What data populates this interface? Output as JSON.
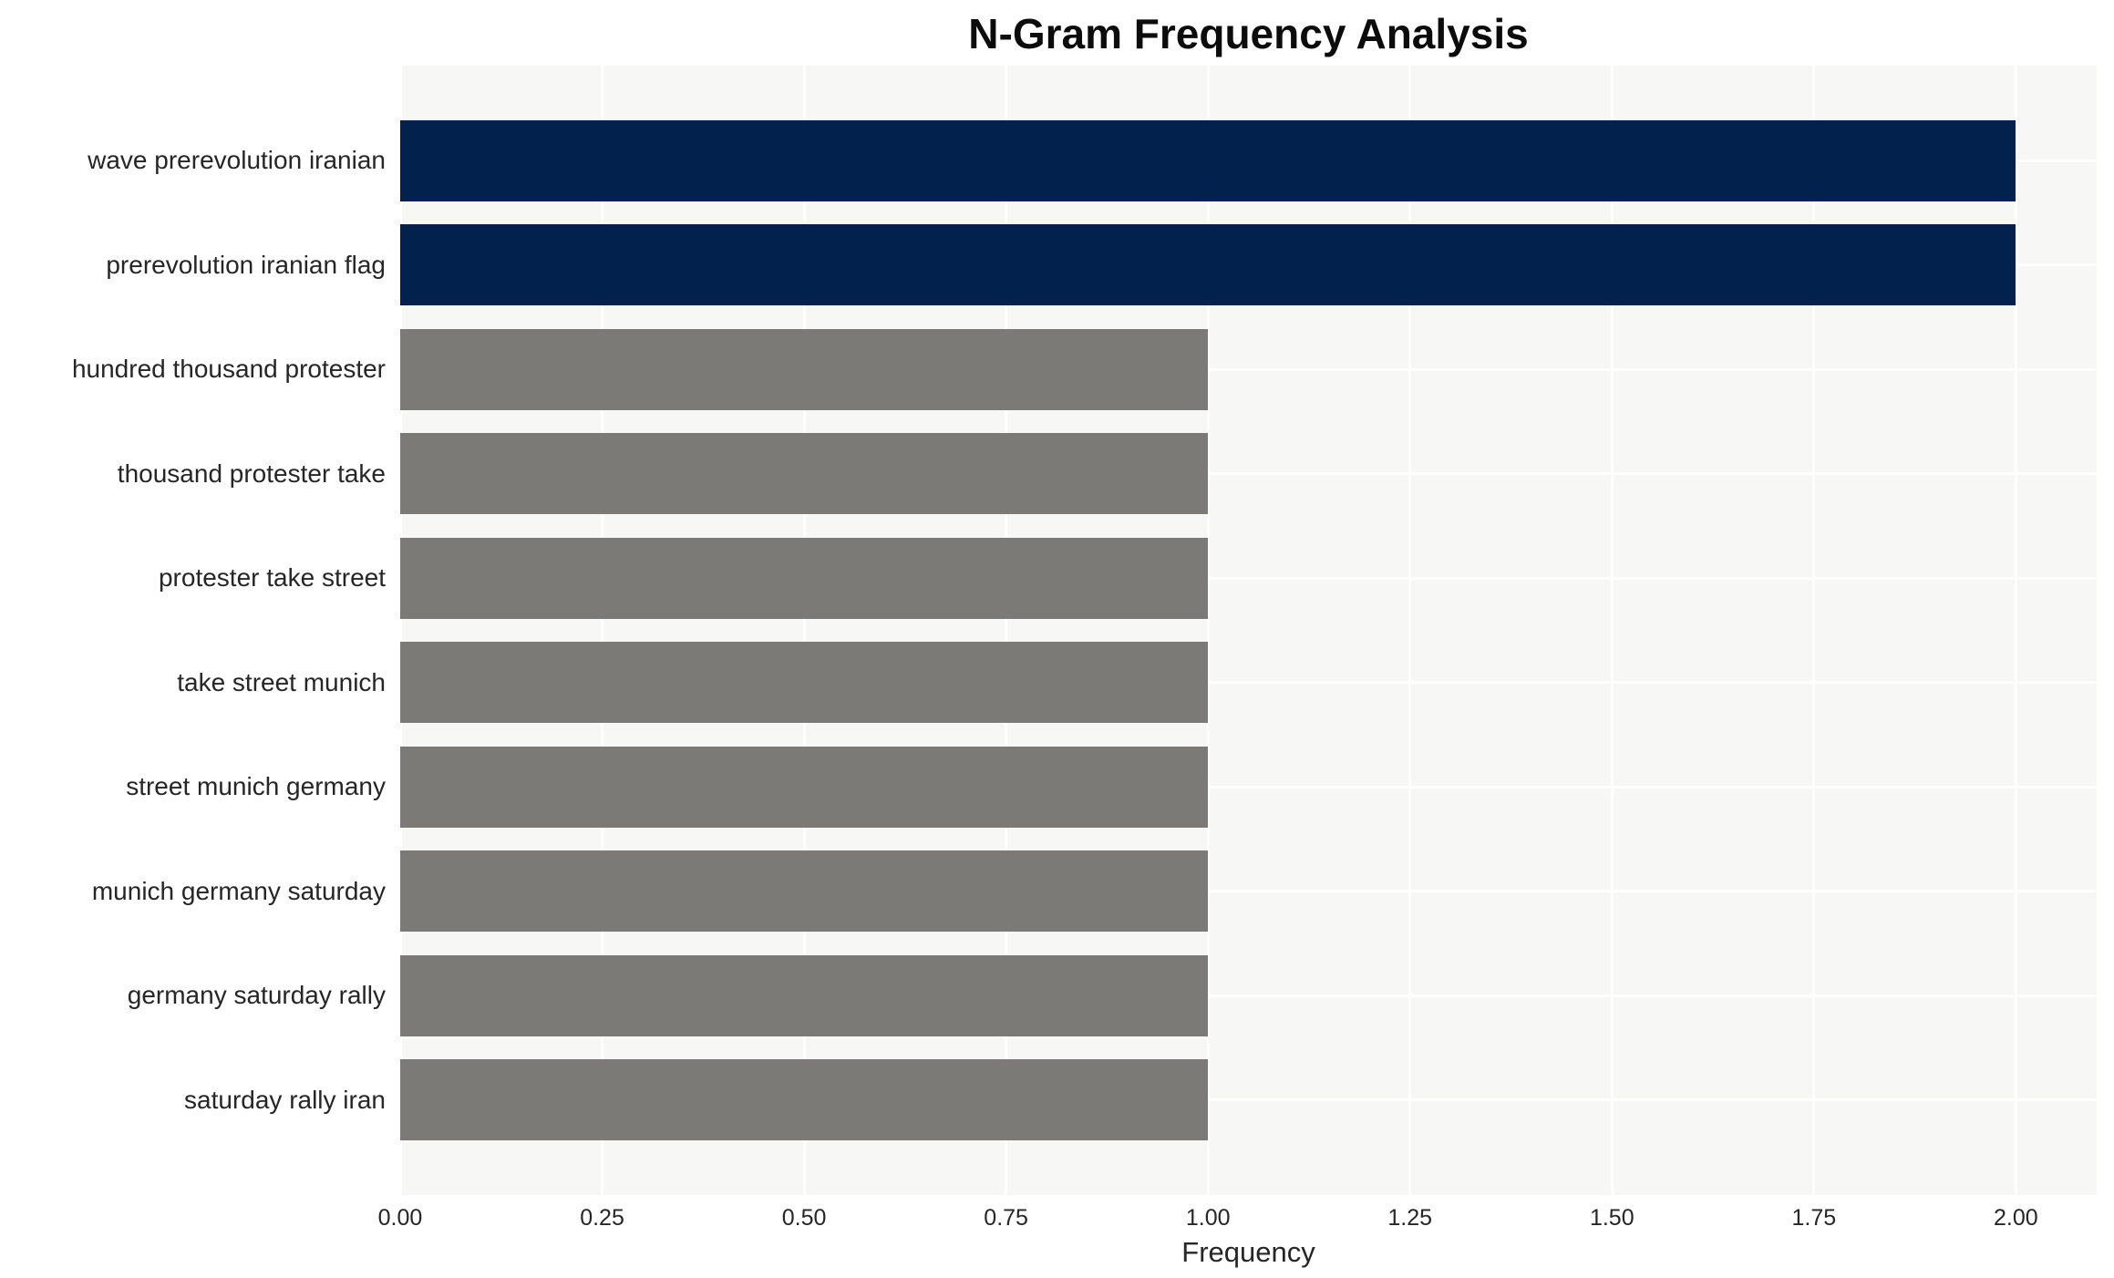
{
  "chart_title": "N-Gram Frequency Analysis",
  "chart_data": {
    "type": "bar",
    "orientation": "horizontal",
    "title": "N-Gram Frequency Analysis",
    "xlabel": "Frequency",
    "ylabel": "",
    "categories": [
      "wave prerevolution iranian",
      "prerevolution iranian flag",
      "hundred thousand protester",
      "thousand protester take",
      "protester take street",
      "take street munich",
      "street munich germany",
      "munich germany saturday",
      "germany saturday rally",
      "saturday rally iran"
    ],
    "values": [
      2,
      2,
      1,
      1,
      1,
      1,
      1,
      1,
      1,
      1
    ],
    "xlim": [
      0,
      2.1
    ],
    "xticks": [
      0,
      0.25,
      0.5,
      0.75,
      1,
      1.25,
      1.5,
      1.75,
      2
    ],
    "xtick_labels": [
      "0.00",
      "0.25",
      "0.50",
      "0.75",
      "1.00",
      "1.25",
      "1.50",
      "1.75",
      "2.00"
    ],
    "grid": true,
    "legend": false,
    "colors": {
      "highlight_bar": "#02224d",
      "default_bar": "#7b7a76",
      "plot_background": "#f7f7f5",
      "gridline": "#ffffff",
      "tick_text": "#262626",
      "title_text": "#0c0c0c"
    },
    "bar_colors": [
      "#02224d",
      "#02224d",
      "#7b7a76",
      "#7b7a76",
      "#7b7a76",
      "#7b7a76",
      "#7b7a76",
      "#7b7a76",
      "#7b7a76",
      "#7b7a76"
    ]
  }
}
